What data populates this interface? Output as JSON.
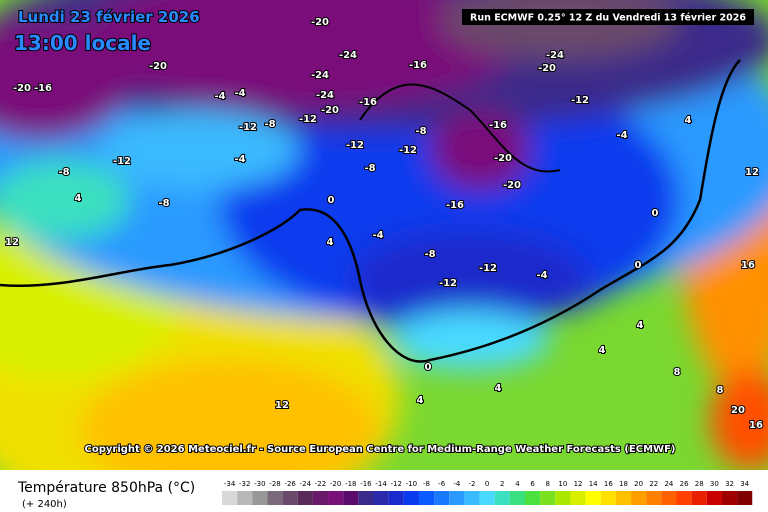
{
  "header": {
    "date": "Lundi 23 février 2026",
    "time": "13:00 locale",
    "run": "Run ECMWF 0.25° 12 Z du Vendredi 13 février 2026"
  },
  "copyright": "Copyright © 2026 Meteociel.fr - Source European Centre for Medium-Range Weather Forecasts (ECMWF)",
  "legend": {
    "title": "Température 850hPa (°C)",
    "lead": "(+ 240h)",
    "ticks": [
      -34,
      -32,
      -30,
      -28,
      -26,
      -24,
      -22,
      -20,
      -18,
      -16,
      -14,
      -12,
      -10,
      -8,
      -6,
      -4,
      -2,
      0,
      2,
      4,
      6,
      8,
      10,
      12,
      14,
      16,
      18,
      20,
      22,
      24,
      26,
      28,
      30,
      32,
      34
    ],
    "colors": [
      "#d8d8d8",
      "#b8b8b8",
      "#989898",
      "#7a6a7a",
      "#6a4a6a",
      "#5a2a5a",
      "#6a1a6a",
      "#7a107a",
      "#5a0a6a",
      "#3a2a8a",
      "#2a2aaa",
      "#1a2acc",
      "#0a3aee",
      "#0a5aff",
      "#1a7aff",
      "#2a9aff",
      "#3abaff",
      "#4adaff",
      "#3ae0c0",
      "#3ae080",
      "#4ae040",
      "#7ae020",
      "#aae800",
      "#d8f000",
      "#ffff00",
      "#ffe000",
      "#ffc000",
      "#ffa000",
      "#ff8000",
      "#ff6000",
      "#ff4000",
      "#e82000",
      "#c80000",
      "#a00000",
      "#800000"
    ]
  },
  "map_labels": [
    -20,
    -16,
    -20,
    -20,
    -24,
    -24,
    -24,
    -20,
    -16,
    -16,
    -24,
    -20,
    -12,
    -16,
    -20,
    -20,
    -12,
    -12,
    -8,
    -8,
    -16,
    -12,
    -8,
    -12,
    -4,
    -4,
    -4,
    -12,
    -8,
    -8,
    4,
    12,
    0,
    4,
    -4,
    -8,
    -12,
    -12,
    -4,
    0,
    0,
    -4,
    4,
    12,
    16,
    4,
    4,
    8,
    12,
    0,
    4,
    8,
    20,
    16,
    4
  ]
}
